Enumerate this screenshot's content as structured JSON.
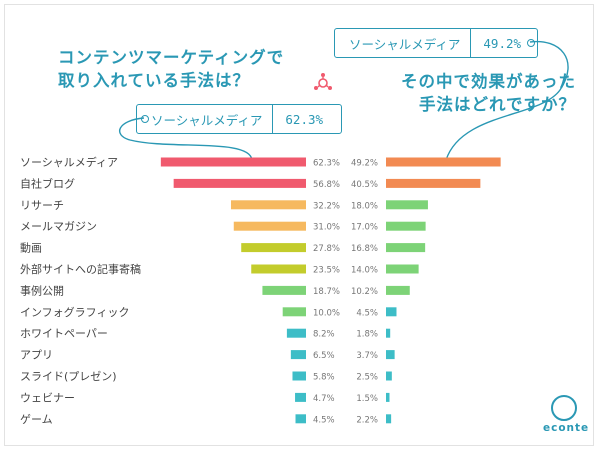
{
  "title_left": "コンテンツマーケティングで\n取り入れている手法は？",
  "title_right": "その中で効果があった\n手法はどれですか？",
  "tag_left": {
    "label": "ソーシャルメディア",
    "value": "62.3%"
  },
  "tag_right": {
    "label": "ソーシャルメディア",
    "value": "49.2%"
  },
  "logo": "econte",
  "colors": {
    "accent": "#2a98b4",
    "left_bars": [
      "#f05a6e",
      "#f05a6e",
      "#f6b95f",
      "#f6b95f",
      "#c3cc2c",
      "#c3cc2c",
      "#7dd377",
      "#7dd377",
      "#3dbdc7",
      "#3dbdc7",
      "#3dbdc7",
      "#3dbdc7",
      "#3dbdc7"
    ],
    "right_bars": [
      "#f28a52",
      "#f28a52",
      "#7dd377",
      "#7dd377",
      "#7dd377",
      "#7dd377",
      "#7dd377",
      "#3dbdc7",
      "#3dbdc7",
      "#3dbdc7",
      "#3dbdc7",
      "#3dbdc7",
      "#3dbdc7"
    ]
  },
  "chart_data": {
    "type": "bar",
    "categories": [
      "ソーシャルメディア",
      "自社ブログ",
      "リサーチ",
      "メールマガジン",
      "動画",
      "外部サイトへの記事寄稿",
      "事例公開",
      "インフォグラフィック",
      "ホワイトペーパー",
      "アプリ",
      "スライド(プレゼン)",
      "ウェビナー",
      "ゲーム"
    ],
    "series": [
      {
        "name": "コンテンツマーケティングで取り入れている手法は？",
        "values": [
          62.3,
          56.8,
          32.2,
          31.0,
          27.8,
          23.5,
          18.7,
          10.0,
          8.2,
          6.5,
          5.8,
          4.7,
          4.5
        ],
        "value_labels": [
          "62.3%",
          "56.8%",
          "32.2%",
          "31.0%",
          "27.8%",
          "23.5%",
          "18.7%",
          "10.0%",
          "8.2%",
          "6.5%",
          "5.8%",
          "4.7%",
          "4.5%"
        ]
      },
      {
        "name": "その中で効果があった手法はどれですか？",
        "values": [
          49.2,
          40.5,
          18.0,
          17.0,
          16.8,
          14.0,
          10.2,
          4.5,
          1.8,
          3.7,
          2.5,
          1.5,
          2.2
        ],
        "value_labels": [
          "49.2%",
          "40.5%",
          "18.0%",
          "17.0%",
          "16.8%",
          "14.0%",
          "10.2%",
          "4.5%",
          "1.8%",
          "3.7%",
          "2.5%",
          "1.5%",
          "2.2%"
        ]
      }
    ],
    "orientation": "horizontal, left series extends leftward, right series extends rightward",
    "grid": false
  }
}
